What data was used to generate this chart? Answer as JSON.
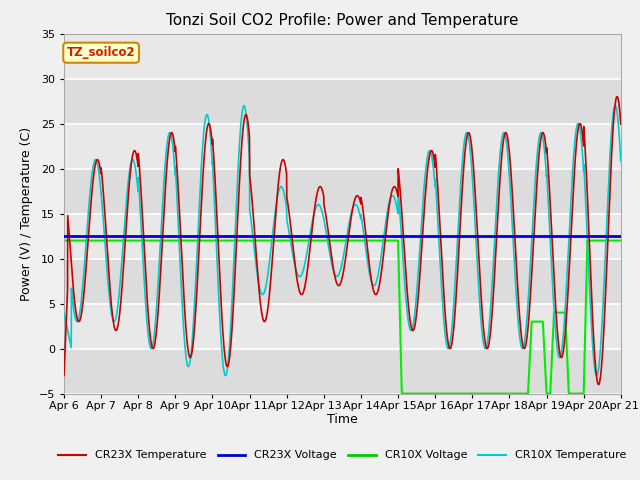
{
  "title": "Tonzi Soil CO2 Profile: Power and Temperature",
  "xlabel": "Time",
  "ylabel": "Power (V) / Temperature (C)",
  "ylim": [
    -5,
    35
  ],
  "xlim": [
    0,
    15
  ],
  "plot_bg": "#e8e8e8",
  "fig_bg": "#f0f0f0",
  "grid_color": "#ffffff",
  "label_box_text": "TZ_soilco2",
  "label_box_bg": "#ffffcc",
  "label_box_border": "#cc8800",
  "xtick_labels": [
    "Apr 6",
    "Apr 7",
    "Apr 8",
    "Apr 9",
    "Apr 10",
    "Apr 11",
    "Apr 12",
    "Apr 13",
    "Apr 14",
    "Apr 15",
    "Apr 16",
    "Apr 17",
    "Apr 18",
    "Apr 19",
    "Apr 20",
    "Apr 21"
  ],
  "ytick_values": [
    -5,
    0,
    5,
    10,
    15,
    20,
    25,
    30,
    35
  ],
  "legend_entries": [
    "CR23X Temperature",
    "CR23X Voltage",
    "CR10X Voltage",
    "CR10X Temperature"
  ],
  "legend_colors": [
    "#cc0000",
    "#0000cc",
    "#00cc00",
    "#00cccc"
  ],
  "cr23x_voltage_y": 12.5,
  "cr10x_voltage_flat_y": 12.0,
  "title_fontsize": 11,
  "axis_fontsize": 9,
  "tick_fontsize": 8
}
